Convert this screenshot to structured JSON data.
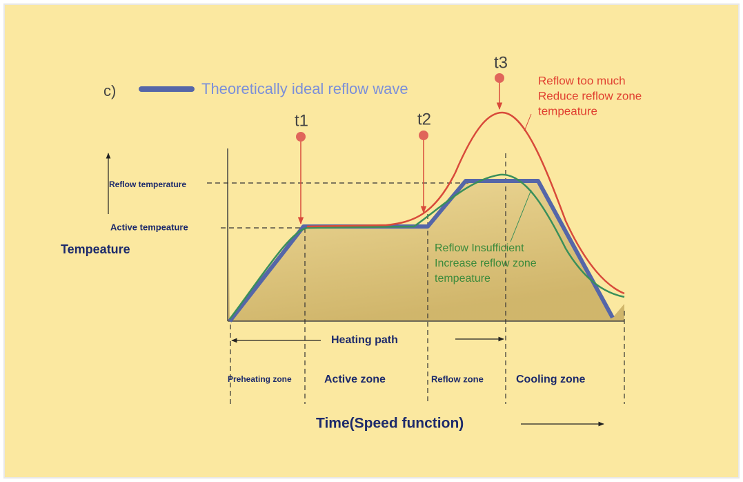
{
  "legend": {
    "prefix": "c)",
    "label": "Theoretically ideal reflow wave"
  },
  "markers": [
    "t1",
    "t2",
    "t3"
  ],
  "too_much": [
    "Reflow too much",
    "Reduce reflow zone",
    "tempeature"
  ],
  "insufficient": [
    "Reflow Insufficient",
    "Increase reflow zone",
    "tempeature"
  ],
  "y_levels": [
    "Reflow temperature",
    "Active tempeature"
  ],
  "y_axis_title": "Tempeature",
  "heating_path": "Heating path",
  "zones": [
    "Preheating zone",
    "Active zone",
    "Reflow zone",
    "Cooling zone"
  ],
  "x_axis_title": "Time(Speed function)"
}
